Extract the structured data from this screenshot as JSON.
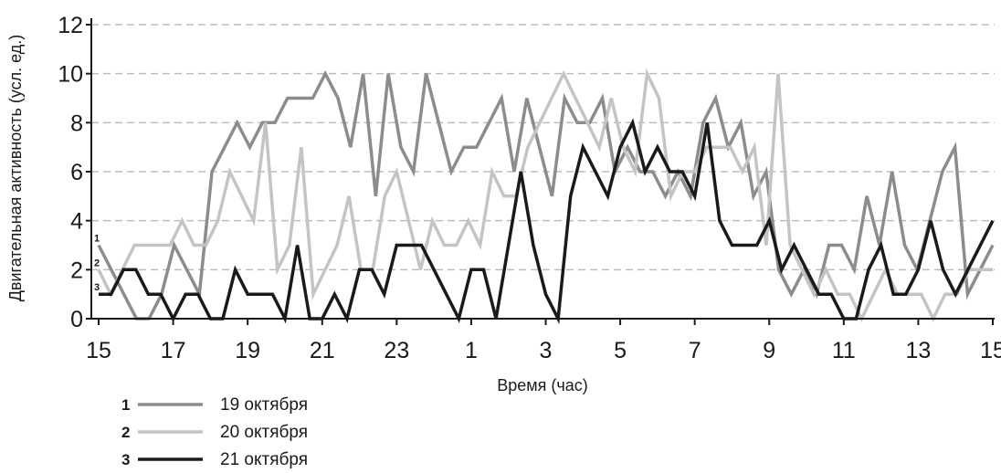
{
  "chart_data": {
    "type": "line",
    "title": "",
    "xlabel": "Время (час)",
    "ylabel": "Двигательная  активность (усл. ед.)",
    "ylim": [
      0,
      12
    ],
    "xlim": [
      0,
      24
    ],
    "yticks": [
      0,
      2,
      4,
      6,
      8,
      10,
      12
    ],
    "xtick_labels": [
      "15",
      "17",
      "19",
      "21",
      "23",
      "1",
      "3",
      "5",
      "7",
      "9",
      "11",
      "13",
      "15"
    ],
    "grid": "horizontal dashed",
    "series": [
      {
        "id": "1",
        "name": "19 октября",
        "color": "#8c8c8c",
        "values": [
          3,
          2,
          1,
          0,
          0,
          1,
          3,
          2,
          1,
          6,
          7,
          8,
          7,
          8,
          8,
          9,
          9,
          9,
          10,
          9,
          7,
          10,
          5,
          10,
          7,
          6,
          10,
          8,
          6,
          7,
          7,
          8,
          9,
          6,
          9,
          7,
          5,
          9,
          8,
          8,
          9,
          6,
          7,
          6,
          6,
          5,
          6,
          5,
          8,
          9,
          7,
          8,
          5,
          6,
          2,
          1,
          2,
          1,
          3,
          3,
          2,
          5,
          3,
          6,
          3,
          2,
          4,
          6,
          7,
          1,
          2,
          3
        ]
      },
      {
        "id": "2",
        "name": "20 октября",
        "color": "#c4c4c4",
        "values": [
          2,
          1,
          2,
          3,
          3,
          3,
          3,
          4,
          3,
          3,
          4,
          6,
          5,
          4,
          8,
          2,
          3,
          7,
          1,
          2,
          3,
          5,
          2,
          2,
          5,
          6,
          4,
          2,
          4,
          3,
          3,
          4,
          3,
          6,
          5,
          5,
          7,
          8,
          9,
          10,
          9,
          8,
          7,
          9,
          7,
          6,
          10,
          9,
          5,
          6,
          6,
          7,
          7,
          7,
          6,
          7,
          3,
          10,
          3,
          2,
          1,
          2,
          1,
          1,
          0,
          1,
          2,
          1,
          1,
          1,
          0,
          1,
          1,
          2,
          2,
          2
        ]
      },
      {
        "id": "3",
        "name": "21 октября",
        "color": "#1a1a1a",
        "values": [
          1,
          1,
          2,
          2,
          1,
          1,
          0,
          1,
          1,
          0,
          0,
          2,
          1,
          1,
          1,
          0,
          3,
          0,
          0,
          1,
          0,
          2,
          2,
          1,
          3,
          3,
          3,
          2,
          1,
          0,
          2,
          2,
          0,
          3,
          6,
          3,
          1,
          0,
          5,
          7,
          6,
          5,
          7,
          8,
          6,
          7,
          6,
          6,
          5,
          8,
          4,
          3,
          3,
          3,
          4,
          2,
          3,
          2,
          1,
          1,
          0,
          0,
          2,
          3,
          1,
          1,
          2,
          4,
          2,
          1,
          2,
          3,
          4
        ]
      }
    ]
  },
  "legend": [
    {
      "num": "1",
      "label": "19 октября"
    },
    {
      "num": "2",
      "label": "20 октября"
    },
    {
      "num": "3",
      "label": "21 октября"
    }
  ]
}
